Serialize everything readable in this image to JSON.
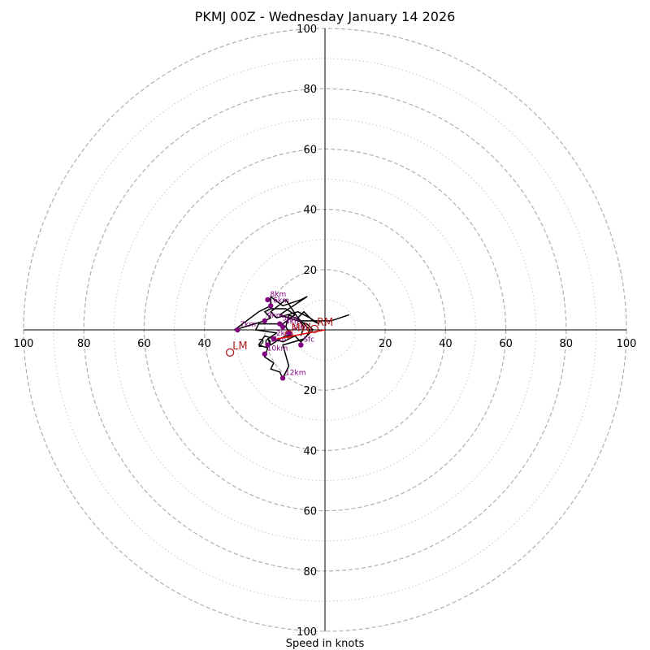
{
  "chart_data": {
    "type": "hodograph",
    "title": "PKMJ 00Z - Wednesday January 14 2026",
    "xlabel": "Speed in knots",
    "range_kt": [
      0,
      100
    ],
    "ring_major_kt": [
      20,
      40,
      60,
      80,
      100
    ],
    "ring_minor_kt": [
      10,
      30,
      50,
      70,
      90
    ],
    "ticks": {
      "top": [
        "100",
        "80",
        "60",
        "40",
        "20"
      ],
      "bottom": [
        "20",
        "40",
        "60",
        "80",
        "100"
      ],
      "left": [
        "100",
        "80",
        "60",
        "40",
        "20"
      ],
      "right": [
        "20",
        "40",
        "60",
        "80",
        "100"
      ]
    },
    "hodograph_trace": [
      [
        8,
        5
      ],
      [
        2,
        3
      ],
      [
        -8,
        3
      ],
      [
        -12,
        5
      ],
      [
        -13,
        1
      ],
      [
        -11,
        -2
      ],
      [
        -13,
        -2
      ],
      [
        -15,
        -3
      ],
      [
        -18,
        -5
      ],
      [
        -19,
        -3
      ],
      [
        -16,
        -1
      ],
      [
        -23,
        0
      ],
      [
        -22,
        2
      ],
      [
        -14,
        2
      ],
      [
        -10,
        5
      ],
      [
        -13,
        7
      ],
      [
        -18,
        7
      ],
      [
        -20,
        6
      ],
      [
        -18,
        4
      ],
      [
        -20,
        3
      ],
      [
        -30,
        0
      ],
      [
        -22,
        6
      ],
      [
        -18,
        8
      ],
      [
        -18,
        11
      ],
      [
        -14,
        8
      ],
      [
        -8,
        10
      ],
      [
        -6,
        11
      ],
      [
        -15,
        5
      ],
      [
        -12,
        4
      ],
      [
        -6,
        2
      ],
      [
        -4,
        0
      ],
      [
        -6,
        -2
      ],
      [
        -8,
        -4
      ],
      [
        -10,
        -2
      ],
      [
        -14,
        -4
      ],
      [
        -20,
        -2
      ],
      [
        -22,
        -5
      ],
      [
        -19,
        -6
      ],
      [
        -20,
        -9
      ],
      [
        -17,
        -11
      ],
      [
        -18,
        -13
      ],
      [
        -15,
        -14
      ],
      [
        -14,
        -16
      ],
      [
        -12,
        -12
      ],
      [
        -14,
        -5
      ],
      [
        -7,
        -3
      ],
      [
        -6,
        -2
      ],
      [
        -5,
        0
      ],
      [
        -7,
        2
      ],
      [
        -9,
        4
      ],
      [
        -7,
        6
      ],
      [
        -4,
        3
      ],
      [
        -2,
        2
      ],
      [
        -5,
        4
      ],
      [
        -9,
        6
      ],
      [
        -16,
        4
      ],
      [
        -18,
        6
      ],
      [
        -13,
        10
      ],
      [
        -7,
        1
      ],
      [
        -8,
        -2
      ]
    ],
    "levels": [
      {
        "label": "Sfc",
        "u": -8,
        "v": -5
      },
      {
        "label": "1km",
        "u": -19,
        "v": -5
      },
      {
        "label": "2km",
        "u": -17,
        "v": -3
      },
      {
        "label": "3km",
        "u": -12,
        "v": -1
      },
      {
        "label": "4km",
        "u": -14,
        "v": 1
      },
      {
        "label": "5km",
        "u": -15,
        "v": 2
      },
      {
        "label": "6km",
        "u": -18,
        "v": 8
      },
      {
        "label": "7km",
        "u": -29,
        "v": 0
      },
      {
        "label": "8km",
        "u": -19,
        "v": 10
      },
      {
        "label": "9km",
        "u": -20,
        "v": 3
      },
      {
        "label": "10km",
        "u": -20,
        "v": -8
      },
      {
        "label": "12km",
        "u": -14,
        "v": -16
      }
    ],
    "storm_motion": {
      "RM": {
        "label": "RM",
        "u": -3.5,
        "v": 0.3
      },
      "LM": {
        "label": "LM",
        "u": -31.5,
        "v": -7.5
      },
      "MW": {
        "label": "MW",
        "u": -12,
        "v": -1.5
      }
    },
    "shear_vector": {
      "from": [
        0,
        0
      ],
      "to": [
        -16,
        -3
      ]
    },
    "colors": {
      "trace": "#000000",
      "level_marker": "#800080",
      "storm_motion": "#b22222",
      "shear": "#e60000",
      "major_ring": "#b0b0b0",
      "minor_ring": "#c8c8c8",
      "axis": "#000000"
    }
  }
}
